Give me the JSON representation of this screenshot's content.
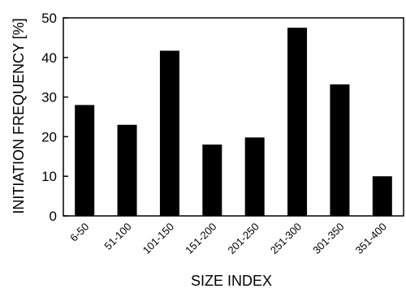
{
  "chart_data": {
    "type": "bar",
    "title": "",
    "xlabel": "SIZE INDEX",
    "ylabel": "INITIATION FREQUENCY [%]",
    "ylim": [
      0,
      50
    ],
    "yticks": [
      "0",
      "10",
      "20",
      "30",
      "40",
      "50"
    ],
    "categories": [
      "6-50",
      "51-100",
      "101-150",
      "151-200",
      "201-250",
      "251-300",
      "301-350",
      "351-400"
    ],
    "values": [
      28,
      23,
      41.7,
      18,
      19.8,
      47.5,
      33.2,
      10
    ],
    "bar_color": "#000000",
    "grid": false,
    "legend": "none"
  }
}
